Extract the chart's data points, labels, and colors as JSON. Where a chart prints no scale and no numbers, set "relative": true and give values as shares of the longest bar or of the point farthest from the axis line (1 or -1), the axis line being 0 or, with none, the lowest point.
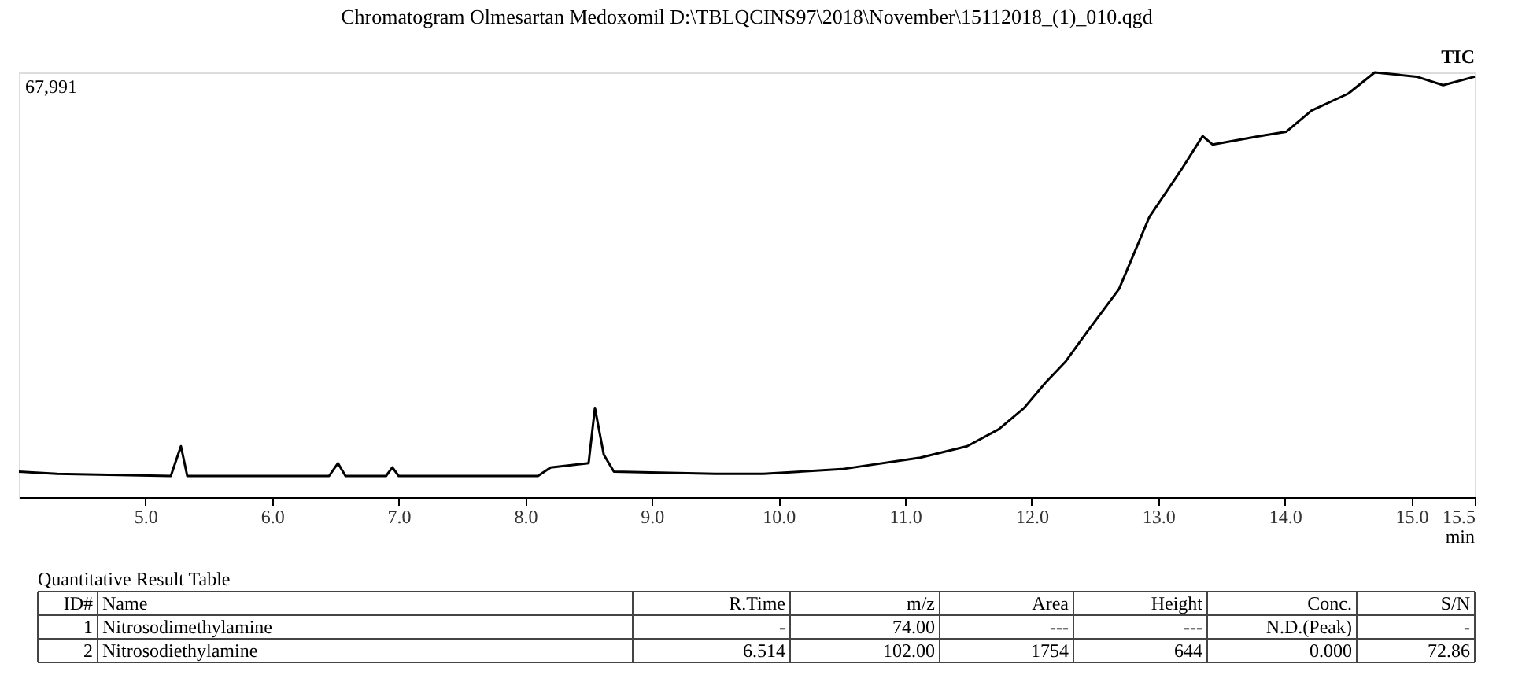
{
  "chart_data": {
    "type": "line",
    "relative": true,
    "title": "Chromatogram Olmesartan Medoxomil D:\\TBLQCINS97\\2018\\November\\15112018_(1)_010.qgd",
    "xlabel": "min",
    "x": [
      4.0,
      4.3,
      5.2,
      5.28,
      5.33,
      6.45,
      6.52,
      6.58,
      6.9,
      6.95,
      7.0,
      8.1,
      8.2,
      8.5,
      8.55,
      8.62,
      8.7,
      9.5,
      9.88,
      10.5,
      11.12,
      11.49,
      11.74,
      11.94,
      12.11,
      12.27,
      12.44,
      12.69,
      12.93,
      13.18,
      13.35,
      13.43,
      13.8,
      14.01,
      14.21,
      14.5,
      14.71,
      15.04,
      15.25,
      15.5
    ],
    "series": [
      {
        "color": "#000000",
        "values": [
          0.06,
          0.055,
          0.05,
          0.12,
          0.05,
          0.05,
          0.08,
          0.05,
          0.05,
          0.07,
          0.05,
          0.05,
          0.07,
          0.08,
          0.21,
          0.1,
          0.06,
          0.055,
          0.055,
          0.066,
          0.093,
          0.12,
          0.16,
          0.21,
          0.27,
          0.32,
          0.39,
          0.49,
          0.66,
          0.77,
          0.85,
          0.83,
          0.85,
          0.86,
          0.91,
          0.95,
          1.0,
          0.99,
          0.97,
          0.99
        ]
      }
    ],
    "xlim": [
      4.0,
      15.5
    ],
    "xticks": [
      {
        "value": 5,
        "label": "5.0"
      },
      {
        "value": 6,
        "label": "6.0"
      },
      {
        "value": 7,
        "label": "7.0"
      },
      {
        "value": 8,
        "label": "8.0"
      },
      {
        "value": 9,
        "label": "9.0"
      },
      {
        "value": 10,
        "label": "10.0"
      },
      {
        "value": 11,
        "label": "11.0"
      },
      {
        "value": 12,
        "label": "12.0"
      },
      {
        "value": 13,
        "label": "13.0"
      },
      {
        "value": 14,
        "label": "14.0"
      },
      {
        "value": 15,
        "label": "15.0"
      },
      15.5
    ],
    "grid": false,
    "marker": "none",
    "line_style": "solid",
    "annotations": [
      "67,991",
      "TIC",
      "Quantitative Result Table",
      "ID#",
      "Name",
      "R.Time",
      "m/z",
      "Area",
      "Height",
      "Conc.",
      "S/N",
      "1",
      "Nitrosodimethylamine",
      "-",
      "74.00",
      "---",
      "---",
      "N.D.(Peak)",
      "-",
      "2",
      "Nitrosodiethylamine",
      "6.514",
      "102.00",
      "1754",
      "644",
      "0.000",
      "72.86"
    ]
  }
}
